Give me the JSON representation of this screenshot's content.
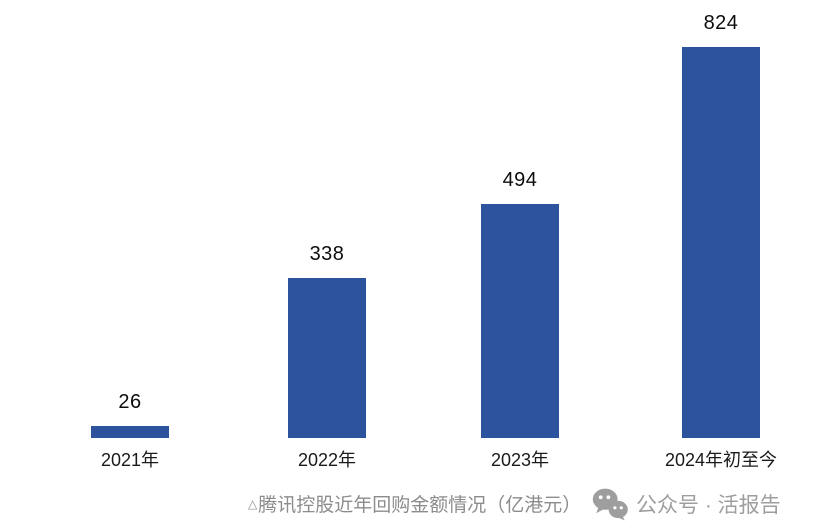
{
  "page": {
    "background_color": "#ffffff"
  },
  "chart_data": {
    "type": "bar",
    "title": "腾讯控股近年回购金额情况（亿港元）",
    "categories": [
      "2021年",
      "2022年",
      "2023年",
      "2024年初至今"
    ],
    "values": [
      26,
      338,
      494,
      824
    ],
    "value_labels": [
      "26",
      "338",
      "494",
      "824"
    ],
    "xlabel": "",
    "ylabel": "",
    "ylim": [
      0,
      824
    ],
    "grid": false,
    "legend": "none",
    "axes_visible": false,
    "bar_color": "#2E539E",
    "value_label_color": "#0d0d0d",
    "category_label_color": "#1a1a1a"
  },
  "caption": {
    "marker": "△",
    "text": "腾讯控股近年回购金额情况（亿港元）",
    "color": "#8c8c8c"
  },
  "watermark": {
    "icon": "wechat-icon",
    "text": "公众号 · 活报告",
    "color": "#9e9e9e"
  }
}
